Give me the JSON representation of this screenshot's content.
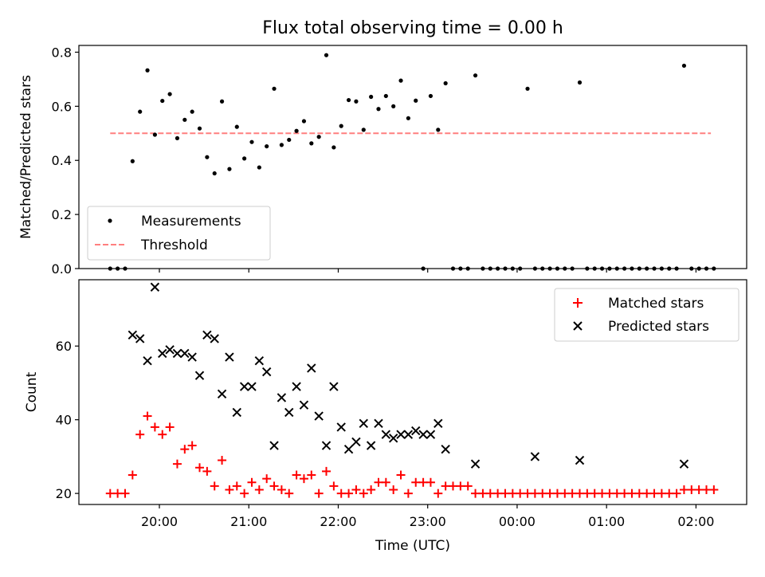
{
  "chart_data": [
    {
      "type": "scatter",
      "title": "Flux total observing time = 0.00 h",
      "xlabel": "",
      "ylabel": "Matched/Predicted stars",
      "xlim": [
        "19:06",
        "02:34"
      ],
      "ylim": [
        0,
        0.825
      ],
      "yticks": [
        {
          "v": 0.0,
          "label": "0.0"
        },
        {
          "v": 0.2,
          "label": "0.2"
        },
        {
          "v": 0.4,
          "label": "0.4"
        },
        {
          "v": 0.6,
          "label": "0.6"
        },
        {
          "v": 0.8,
          "label": "0.8"
        }
      ],
      "xtick_times": [
        "20:00",
        "21:00",
        "22:00",
        "23:00",
        "00:00",
        "01:00",
        "02:00"
      ],
      "legend": {
        "placement": "lower-left",
        "entries": [
          {
            "label": "Measurements",
            "marker": "dot",
            "color": "#000000"
          },
          {
            "label": "Threshold",
            "marker": "dashed-line",
            "color": "#ff7f7f"
          }
        ]
      },
      "threshold": {
        "value": 0.5,
        "x_start": "19:27",
        "x_end": "02:10"
      },
      "series": [
        {
          "marker": "dot",
          "color": "#000000",
          "x": [
            "19:27",
            "19:32",
            "19:37",
            "19:42",
            "19:47",
            "19:52",
            "19:57",
            "20:02",
            "20:07",
            "20:12",
            "20:17",
            "20:22",
            "20:27",
            "20:32",
            "20:37",
            "20:42",
            "20:47",
            "20:52",
            "20:57",
            "21:02",
            "21:07",
            "21:12",
            "21:17",
            "21:22",
            "21:27",
            "21:32",
            "21:37",
            "21:42",
            "21:47",
            "21:52",
            "21:57",
            "22:02",
            "22:07",
            "22:12",
            "22:17",
            "22:22",
            "22:27",
            "22:32",
            "22:37",
            "22:42",
            "22:47",
            "22:52",
            "22:57",
            "23:02",
            "23:07",
            "23:12",
            "23:17",
            "23:22",
            "23:27",
            "23:32",
            "23:37",
            "23:42",
            "23:47",
            "23:52",
            "23:57",
            "00:02",
            "00:07",
            "00:12",
            "00:17",
            "00:22",
            "00:27",
            "00:32",
            "00:37",
            "00:42",
            "00:47",
            "00:52",
            "00:57",
            "01:02",
            "01:07",
            "01:12",
            "01:17",
            "01:22",
            "01:27",
            "01:32",
            "01:37",
            "01:42",
            "01:47",
            "01:52",
            "01:57",
            "02:02",
            "02:07",
            "02:12"
          ],
          "y": [
            0.0,
            0.0,
            0.0,
            0.397,
            0.58,
            0.733,
            0.495,
            0.62,
            0.645,
            0.482,
            0.55,
            0.58,
            0.518,
            0.412,
            0.352,
            0.618,
            0.368,
            0.524,
            0.407,
            0.468,
            0.374,
            0.452,
            0.665,
            0.457,
            0.476,
            0.509,
            0.545,
            0.463,
            0.487,
            0.789,
            0.448,
            0.527,
            0.623,
            0.618,
            0.513,
            0.635,
            0.59,
            0.638,
            0.6,
            0.695,
            0.556,
            0.621,
            0.0,
            0.638,
            0.513,
            0.685,
            0.0,
            0.0,
            0.0,
            0.714,
            0.0,
            0.0,
            0.0,
            0.0,
            0.0,
            0.0,
            0.665,
            0.0,
            0.0,
            0.0,
            0.0,
            0.0,
            0.0,
            0.688,
            0.0,
            0.0,
            0.0,
            0.0,
            0.0,
            0.0,
            0.0,
            0.0,
            0.0,
            0.0,
            0.0,
            0.0,
            0.0,
            0.75,
            0.0,
            0.0,
            0.0,
            0.0
          ]
        }
      ]
    },
    {
      "type": "scatter",
      "title": "",
      "xlabel": "Time (UTC)",
      "ylabel": "Count",
      "xlim": [
        "19:06",
        "02:34"
      ],
      "ylim": [
        17,
        78
      ],
      "yticks": [
        {
          "v": 20,
          "label": "20"
        },
        {
          "v": 40,
          "label": "40"
        },
        {
          "v": 60,
          "label": "60"
        }
      ],
      "xticks": [
        "20:00",
        "21:00",
        "22:00",
        "23:00",
        "00:00",
        "01:00",
        "02:00"
      ],
      "legend": {
        "placement": "upper-right",
        "entries": [
          {
            "label": "Matched stars",
            "marker": "plus",
            "color": "#ff0000"
          },
          {
            "label": "Predicted stars",
            "marker": "x",
            "color": "#000000"
          }
        ]
      },
      "series": [
        {
          "name": "Matched stars",
          "marker": "plus",
          "color": "#ff0000",
          "x": [
            "19:27",
            "19:32",
            "19:37",
            "19:42",
            "19:47",
            "19:52",
            "19:57",
            "20:02",
            "20:07",
            "20:12",
            "20:17",
            "20:22",
            "20:27",
            "20:32",
            "20:37",
            "20:42",
            "20:47",
            "20:52",
            "20:57",
            "21:02",
            "21:07",
            "21:12",
            "21:17",
            "21:22",
            "21:27",
            "21:32",
            "21:37",
            "21:42",
            "21:47",
            "21:52",
            "21:57",
            "22:02",
            "22:07",
            "22:12",
            "22:17",
            "22:22",
            "22:27",
            "22:32",
            "22:37",
            "22:42",
            "22:47",
            "22:52",
            "22:57",
            "23:02",
            "23:07",
            "23:12",
            "23:17",
            "23:22",
            "23:27",
            "23:32",
            "23:37",
            "23:42",
            "23:47",
            "23:52",
            "23:57",
            "00:02",
            "00:07",
            "00:12",
            "00:17",
            "00:22",
            "00:27",
            "00:32",
            "00:37",
            "00:42",
            "00:47",
            "00:52",
            "00:57",
            "01:02",
            "01:07",
            "01:12",
            "01:17",
            "01:22",
            "01:27",
            "01:32",
            "01:37",
            "01:42",
            "01:47",
            "01:52",
            "01:57",
            "02:02",
            "02:07",
            "02:12"
          ],
          "y": [
            20,
            20,
            20,
            25,
            36,
            41,
            38,
            36,
            38,
            28,
            32,
            33,
            27,
            26,
            22,
            29,
            21,
            22,
            20,
            23,
            21,
            24,
            22,
            21,
            20,
            25,
            24,
            25,
            20,
            26,
            22,
            20,
            20,
            21,
            20,
            21,
            23,
            23,
            21,
            25,
            20,
            23,
            23,
            23,
            20,
            22,
            22,
            22,
            22,
            20,
            20,
            20,
            20,
            20,
            20,
            20,
            20,
            20,
            20,
            20,
            20,
            20,
            20,
            20,
            20,
            20,
            20,
            20,
            20,
            20,
            20,
            20,
            20,
            20,
            20,
            20,
            20,
            21,
            21,
            21,
            21,
            21
          ]
        },
        {
          "name": "Predicted stars",
          "marker": "x",
          "color": "#000000",
          "x": [
            "19:42",
            "19:47",
            "19:52",
            "19:57",
            "20:02",
            "20:07",
            "20:12",
            "20:17",
            "20:22",
            "20:27",
            "20:32",
            "20:37",
            "20:42",
            "20:47",
            "20:52",
            "20:57",
            "21:02",
            "21:07",
            "21:12",
            "21:17",
            "21:22",
            "21:27",
            "21:32",
            "21:37",
            "21:42",
            "21:47",
            "21:52",
            "21:57",
            "22:02",
            "22:07",
            "22:12",
            "22:17",
            "22:22",
            "22:27",
            "22:32",
            "22:37",
            "22:42",
            "22:47",
            "22:52",
            "22:57",
            "23:02",
            "23:07",
            "23:12",
            "23:32",
            "00:12",
            "00:42",
            "01:52"
          ],
          "y": [
            63,
            62,
            56,
            76,
            58,
            59,
            58,
            58,
            57,
            52,
            63,
            62,
            47,
            57,
            42,
            49,
            49,
            56,
            53,
            33,
            46,
            42,
            49,
            44,
            54,
            41,
            33,
            49,
            38,
            32,
            34,
            39,
            33,
            39,
            36,
            35,
            36,
            36,
            37,
            36,
            36,
            39,
            32,
            28,
            30,
            29,
            28
          ]
        }
      ]
    }
  ]
}
